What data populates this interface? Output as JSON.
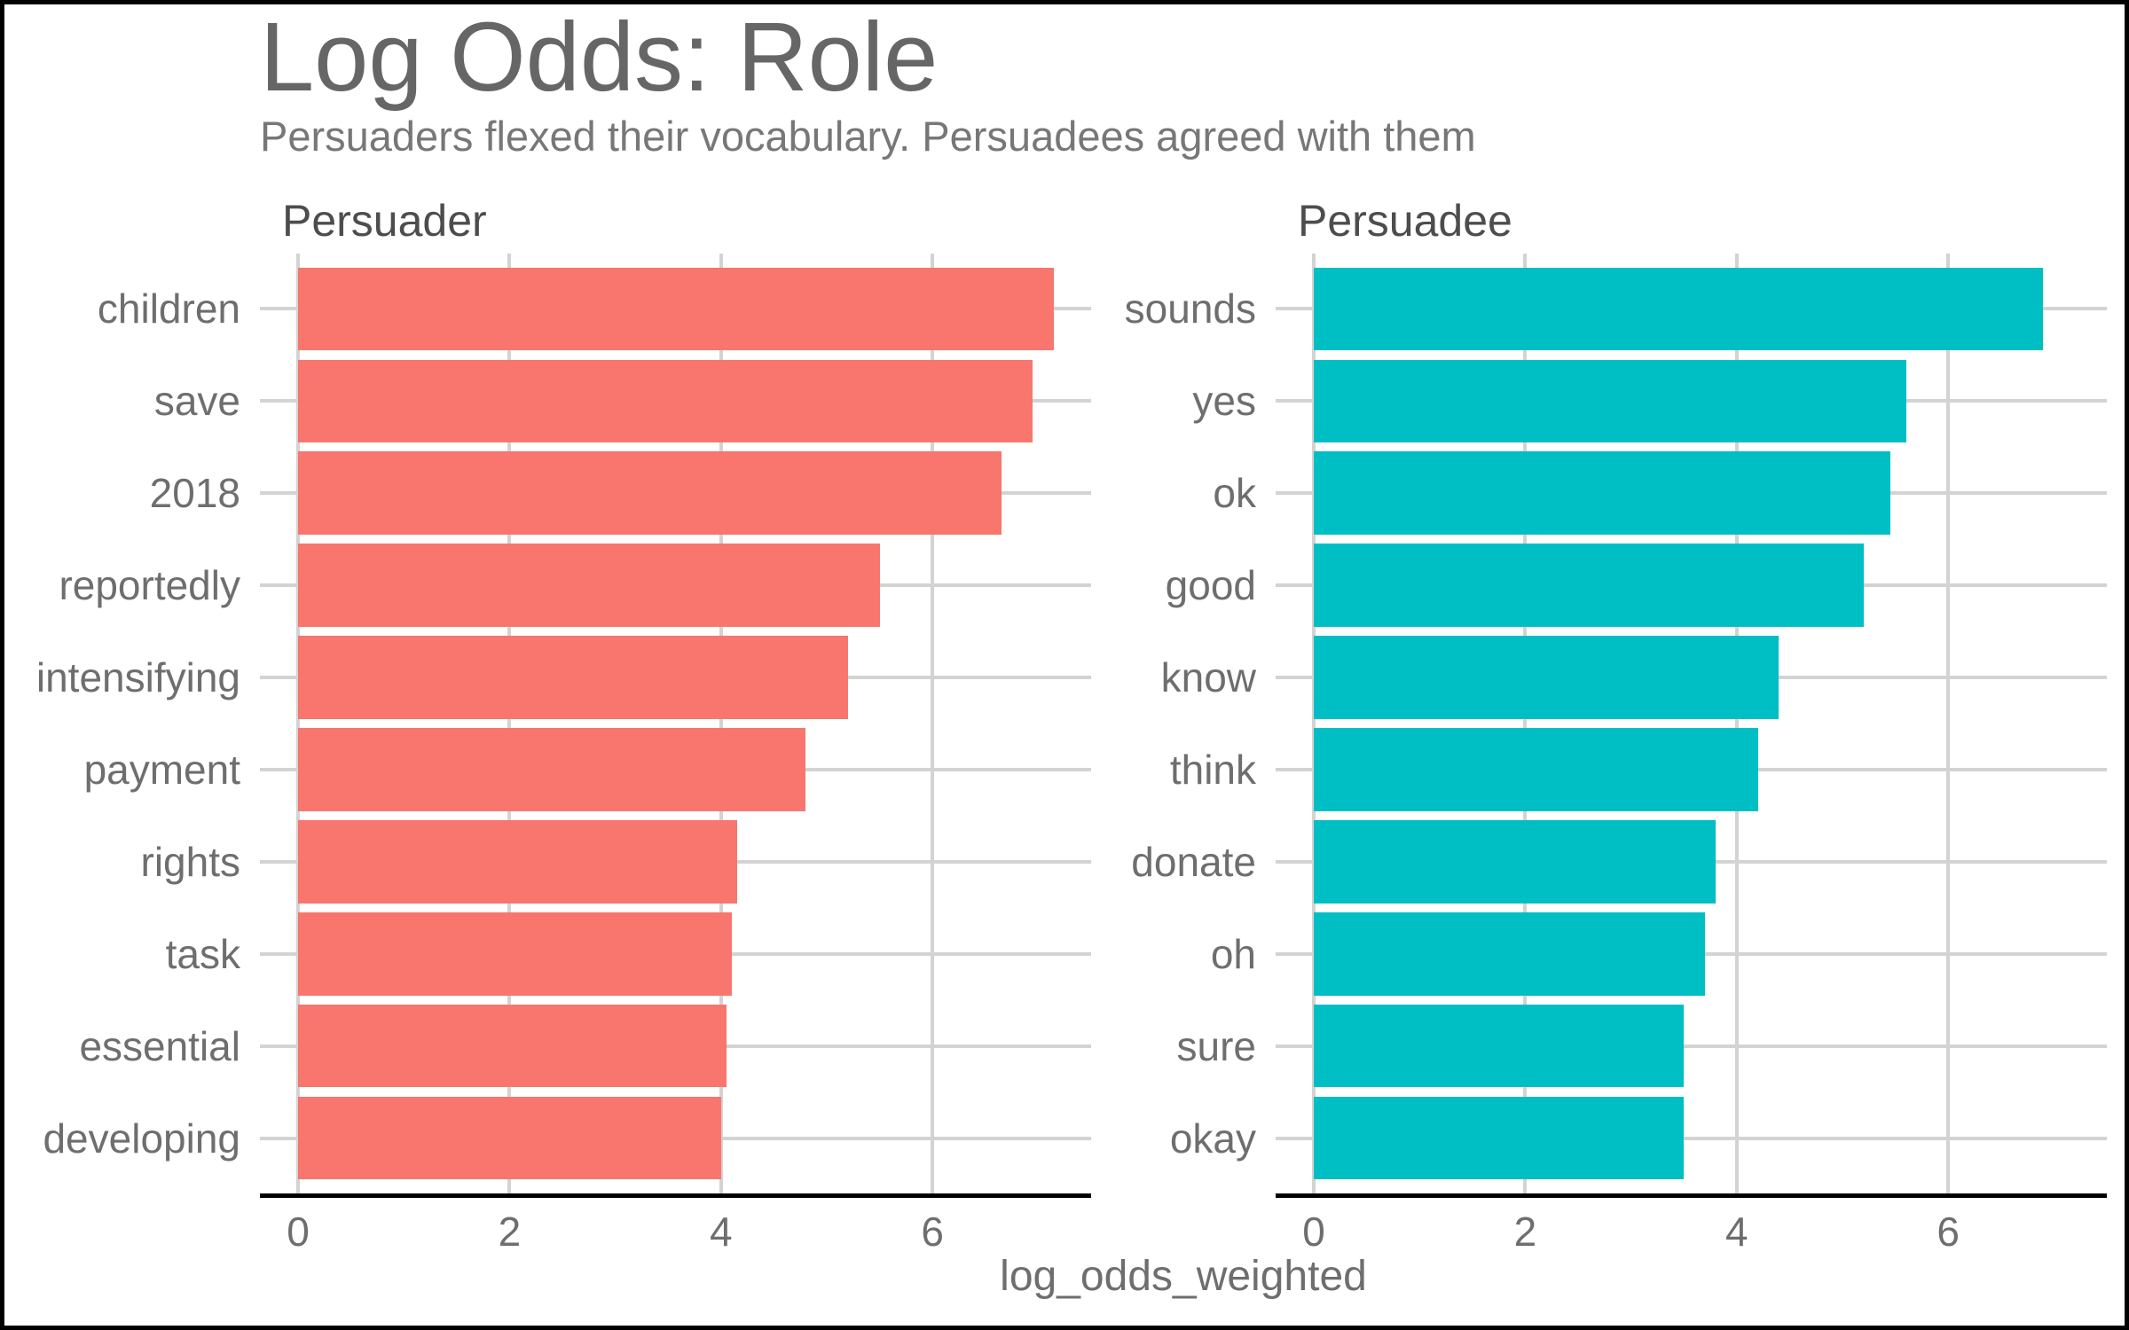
{
  "title": "Log Odds: Role",
  "subtitle": "Persuaders flexed their vocabulary. Persuadees agreed with them",
  "x_axis_title": "log_odds_weighted",
  "colors": {
    "persuader_bar": "#F8766D",
    "persuadee_bar": "#00BFC4",
    "gridline": "#D3D3D3",
    "axis_line": "#000000",
    "title_text": "#666666",
    "subtitle_text": "#777777",
    "strip_text": "#4D4D4D",
    "axis_text": "#6E6E6E"
  },
  "chart_data": [
    {
      "type": "bar",
      "orientation": "horizontal",
      "facet": "Persuader",
      "bar_color": "#F8766D",
      "categories": [
        "children",
        "save",
        "2018",
        "reportedly",
        "intensifying",
        "payment",
        "rights",
        "task",
        "essential",
        "developing"
      ],
      "values": [
        7.15,
        6.95,
        6.65,
        5.5,
        5.2,
        4.8,
        4.15,
        4.1,
        4.05,
        4.0
      ],
      "xlabel": "log_odds_weighted",
      "xlim": [
        0,
        7.5
      ],
      "xticks": [
        0,
        2,
        4,
        6
      ],
      "grid": true,
      "legend": false
    },
    {
      "type": "bar",
      "orientation": "horizontal",
      "facet": "Persuadee",
      "bar_color": "#00BFC4",
      "categories": [
        "sounds",
        "yes",
        "ok",
        "good",
        "know",
        "think",
        "donate",
        "oh",
        "sure",
        "okay"
      ],
      "values": [
        6.9,
        5.6,
        5.45,
        5.2,
        4.4,
        4.2,
        3.8,
        3.7,
        3.5,
        3.5
      ],
      "xlabel": "log_odds_weighted",
      "xlim": [
        0,
        7.5
      ],
      "xticks": [
        0,
        2,
        4,
        6
      ],
      "grid": true,
      "legend": false
    }
  ]
}
